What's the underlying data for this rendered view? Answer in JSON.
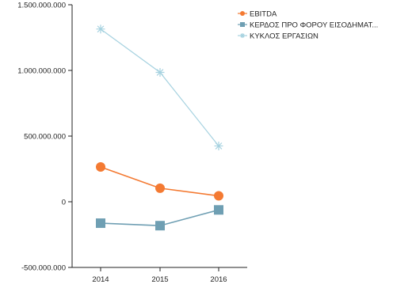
{
  "chart_data": {
    "type": "line",
    "title": "",
    "xlabel": "",
    "ylabel": "",
    "categories": [
      "2014",
      "2015",
      "2016"
    ],
    "ylim": [
      -500000000,
      1500000000
    ],
    "y_ticks": [
      -500000000,
      0,
      500000000,
      1000000000,
      1500000000
    ],
    "y_tick_labels": [
      "-500.000.000",
      "0",
      "500.000.000",
      "1.000.000.000",
      "1.500.000.000"
    ],
    "grid": false,
    "legend_position": "top-right",
    "series": [
      {
        "name": "EBITDA",
        "marker": "circle",
        "color": "#f47a32",
        "values": [
          265000000,
          103000000,
          45000000
        ]
      },
      {
        "name": "ΚΕΡΔΟΣ ΠΡΟ ΦΟΡΟΥ ΕΙΣΟΔΗΜΑΤ...",
        "marker": "square",
        "color": "#6f9fb3",
        "values": [
          -163000000,
          -182000000,
          -62000000
        ]
      },
      {
        "name": "ΚΥΚΛΟΣ ΕΡΓΑΣΙΩΝ",
        "marker": "star",
        "color": "#a6d2e0",
        "values": [
          1315000000,
          985000000,
          425000000
        ]
      }
    ]
  }
}
